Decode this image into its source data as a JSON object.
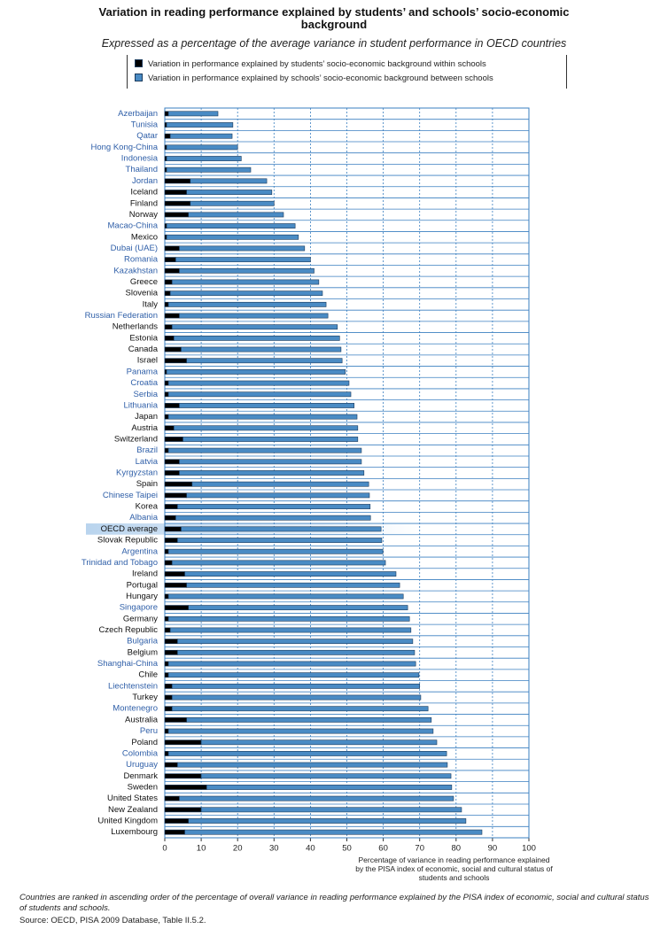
{
  "chart_data": {
    "type": "stacked-barh",
    "title": "Variation in reading performance explained by students’ and schools’ socio-economic background",
    "subtitle": "Expressed as a percentage of the average variance in student performance in OECD countries",
    "x_label": "Percentage of variance in reading performance explained by the PISA index of economic, social and cultural status of students and schools",
    "note": "Countries are ranked in ascending order of the percentage of overall variance in reading performance explained by the PISA index of economic, social and cultural status of students and schools.",
    "source": "Source: OECD, PISA 2009 Database, Table II.5.2.",
    "categories": [
      "Azerbaijan",
      "Tunisia",
      "Qatar",
      "Hong Kong-China",
      "Indonesia",
      "Thailand",
      "Jordan",
      "Iceland",
      "Finland",
      "Norway",
      "Macao-China",
      "Mexico",
      "Dubai (UAE)",
      "Romania",
      "Kazakhstan",
      "Greece",
      "Slovenia",
      "Italy",
      "Russian Federation",
      "Netherlands",
      "Estonia",
      "Canada",
      "Israel",
      "Panama",
      "Croatia",
      "Serbia",
      "Lithuania",
      "Japan",
      "Austria",
      "Switzerland",
      "Brazil",
      "Latvia",
      "Kyrgyzstan",
      "Spain",
      "Chinese Taipei",
      "Korea",
      "Albania",
      "OECD average",
      "Slovak Republic",
      "Argentina",
      "Trinidad and Tobago",
      "Ireland",
      "Portugal",
      "Hungary",
      "Singapore",
      "Germany",
      "Czech Republic",
      "Bulgaria",
      "Belgium",
      "Shanghai-China",
      "Chile",
      "Liechtenstein",
      "Turkey",
      "Montenegro",
      "Australia",
      "Peru",
      "Poland",
      "Colombia",
      "Uruguay",
      "Denmark",
      "Sweden",
      "United States",
      "New Zealand",
      "United Kingdom",
      "Luxembourg"
    ],
    "category_colors": [
      "#2f5fa8",
      "#2f5fa8",
      "#2f5fa8",
      "#2f5fa8",
      "#2f5fa8",
      "#2f5fa8",
      "#2f5fa8",
      "#111111",
      "#111111",
      "#111111",
      "#2f5fa8",
      "#111111",
      "#2f5fa8",
      "#2f5fa8",
      "#2f5fa8",
      "#111111",
      "#111111",
      "#111111",
      "#2f5fa8",
      "#111111",
      "#111111",
      "#111111",
      "#111111",
      "#2f5fa8",
      "#2f5fa8",
      "#2f5fa8",
      "#2f5fa8",
      "#111111",
      "#111111",
      "#111111",
      "#2f5fa8",
      "#2f5fa8",
      "#2f5fa8",
      "#111111",
      "#2f5fa8",
      "#111111",
      "#2f5fa8",
      "#111111",
      "#111111",
      "#2f5fa8",
      "#2f5fa8",
      "#111111",
      "#111111",
      "#111111",
      "#2f5fa8",
      "#111111",
      "#111111",
      "#2f5fa8",
      "#111111",
      "#2f5fa8",
      "#111111",
      "#2f5fa8",
      "#111111",
      "#2f5fa8",
      "#111111",
      "#2f5fa8",
      "#111111",
      "#2f5fa8",
      "#2f5fa8",
      "#111111",
      "#111111",
      "#111111",
      "#111111",
      "#111111",
      "#111111"
    ],
    "highlight": "OECD average",
    "series": [
      {
        "name": "Variation in performance explained by students’ socio-economic background within schools",
        "color": "#000000",
        "values": [
          1,
          0.5,
          1.5,
          0.5,
          0.5,
          0.5,
          7,
          6,
          7,
          6.5,
          0.5,
          0.5,
          4,
          3,
          4,
          2,
          1.5,
          1,
          4,
          2,
          2.5,
          4.5,
          6,
          0.5,
          1,
          1,
          4,
          1,
          2.5,
          5,
          1,
          4,
          4,
          7.5,
          6,
          3.5,
          3,
          4.5,
          3.5,
          1,
          2,
          5.5,
          6,
          1,
          6.5,
          1,
          1.5,
          3.5,
          3.5,
          1,
          1,
          2,
          2,
          2,
          6,
          1,
          10,
          1,
          3.5,
          10,
          11.5,
          4,
          10,
          6.5,
          5.5
        ]
      },
      {
        "name": "Variation in performance explained by schools’ socio-economic background between schools",
        "color": "#4a8bc4",
        "values": [
          13.6,
          18.2,
          17,
          19.5,
          20.5,
          23.1,
          21,
          23.4,
          23,
          26.1,
          35.3,
          36.2,
          34.4,
          37,
          37,
          40.3,
          41.8,
          43.3,
          40.8,
          45.4,
          45.5,
          43.9,
          42.7,
          49.1,
          49.6,
          50.1,
          48,
          51.8,
          50.5,
          48,
          53,
          50,
          50.7,
          48.5,
          50.2,
          52.9,
          53.5,
          54.9,
          56.1,
          58.9,
          58.6,
          58,
          58.5,
          64.5,
          60.2,
          66.2,
          66.1,
          64.6,
          65.1,
          67.9,
          68.8,
          68,
          68.3,
          70.3,
          67.2,
          72.7,
          64.7,
          76.4,
          74.1,
          68.6,
          67.3,
          75.3,
          71.5,
          76.2,
          81.6
        ]
      }
    ],
    "xlim": [
      0,
      100
    ],
    "xticks": [
      0,
      10,
      20,
      30,
      40,
      50,
      60,
      70,
      80,
      90,
      100
    ],
    "grid": true
  }
}
